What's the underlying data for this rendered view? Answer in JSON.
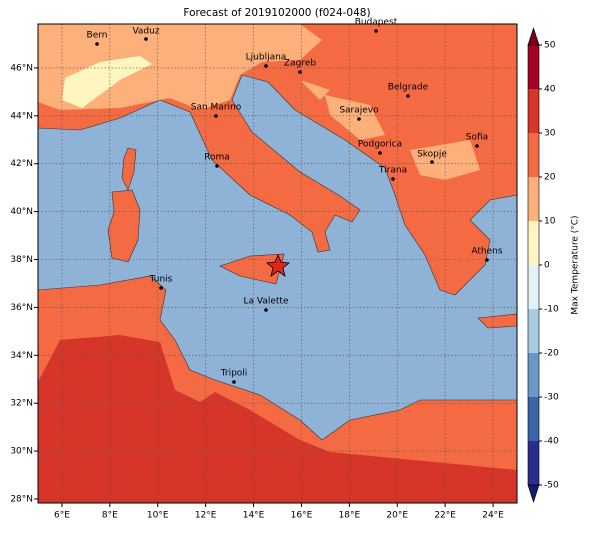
{
  "map": {
    "title": "Forecast of 2019102000 (f024-048)",
    "lon_ticks": [
      {
        "value": 6,
        "label": "6°E"
      },
      {
        "value": 8,
        "label": "8°E"
      },
      {
        "value": 10,
        "label": "10°E"
      },
      {
        "value": 12,
        "label": "12°E"
      },
      {
        "value": 14,
        "label": "14°E"
      },
      {
        "value": 16,
        "label": "16°E"
      },
      {
        "value": 18,
        "label": "18°E"
      },
      {
        "value": 20,
        "label": "20°E"
      },
      {
        "value": 22,
        "label": "22°E"
      },
      {
        "value": 24,
        "label": "24°E"
      }
    ],
    "lat_ticks": [
      {
        "value": 28,
        "label": "28°N"
      },
      {
        "value": 30,
        "label": "30°N"
      },
      {
        "value": 32,
        "label": "32°N"
      },
      {
        "value": 34,
        "label": "34°N"
      },
      {
        "value": 36,
        "label": "36°N"
      },
      {
        "value": 38,
        "label": "38°N"
      },
      {
        "value": 40,
        "label": "40°N"
      },
      {
        "value": 42,
        "label": "42°N"
      },
      {
        "value": 44,
        "label": "44°N"
      },
      {
        "value": 46,
        "label": "46°N"
      }
    ],
    "cities": [
      "Bern",
      "Vaduz",
      "Budapest",
      "Ljubljana",
      "Zagreb",
      "Belgrade",
      "San Marino",
      "Sarajevo",
      "Sofia",
      "Podgorica",
      "Skopje",
      "Roma",
      "Tirana",
      "Athens",
      "Tunis",
      "La Valette",
      "Tripoli"
    ],
    "colorbar": {
      "label": "Max Temperature (°C)",
      "lim": [
        -50,
        50
      ],
      "ticks": [
        -50,
        -40,
        -30,
        -20,
        -10,
        0,
        10,
        20,
        30,
        40,
        50
      ],
      "bounds": [
        -50,
        -40,
        -30,
        -20,
        -10,
        0,
        10,
        20,
        30,
        40,
        50
      ],
      "colors": [
        "#2b2d8e",
        "#3a63a8",
        "#6b98c7",
        "#a8cde2",
        "#e2f2f5",
        "#fef6c0",
        "#fdb07a",
        "#f46a43",
        "#d53629",
        "#a50026"
      ],
      "extend_colors": [
        "#161a70",
        "#7a0020"
      ]
    }
  }
}
